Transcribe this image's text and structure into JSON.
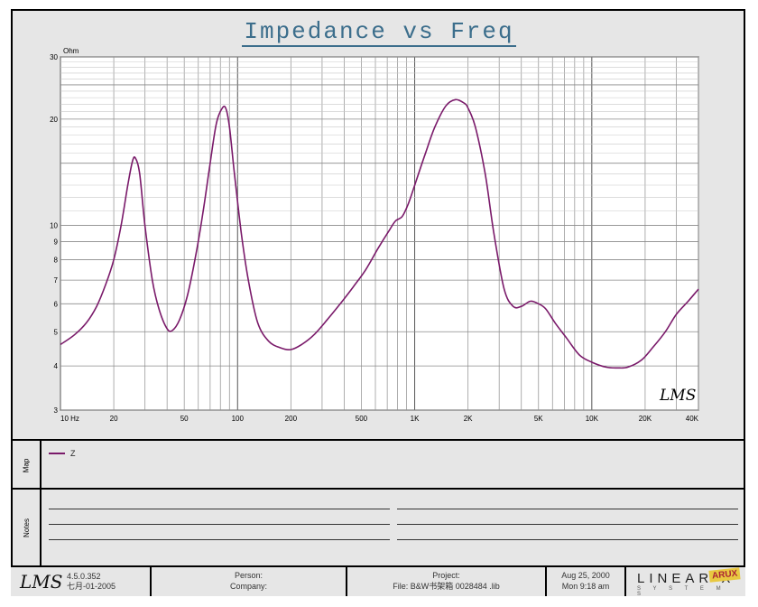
{
  "chart_data": {
    "type": "line",
    "title": "Impedance vs Freq",
    "ylabel": "Ohm",
    "xscale": "log",
    "yscale": "log",
    "xlim": [
      10,
      40000
    ],
    "ylim": [
      3,
      30
    ],
    "grid": true,
    "x_ticks": [
      {
        "v": 10,
        "label": "10 Hz"
      },
      {
        "v": 20,
        "label": "20"
      },
      {
        "v": 50,
        "label": "50"
      },
      {
        "v": 100,
        "label": "100"
      },
      {
        "v": 200,
        "label": "200"
      },
      {
        "v": 500,
        "label": "500"
      },
      {
        "v": 1000,
        "label": "1K"
      },
      {
        "v": 2000,
        "label": "2K"
      },
      {
        "v": 5000,
        "label": "5K"
      },
      {
        "v": 10000,
        "label": "10K"
      },
      {
        "v": 20000,
        "label": "20K"
      },
      {
        "v": 40000,
        "label": "40K"
      }
    ],
    "y_ticks": [
      {
        "v": 3,
        "label": "3"
      },
      {
        "v": 4,
        "label": "4"
      },
      {
        "v": 5,
        "label": "5"
      },
      {
        "v": 6,
        "label": "6"
      },
      {
        "v": 7,
        "label": "7"
      },
      {
        "v": 8,
        "label": "8"
      },
      {
        "v": 9,
        "label": "9"
      },
      {
        "v": 10,
        "label": "10"
      },
      {
        "v": 20,
        "label": "20"
      },
      {
        "v": 30,
        "label": "30"
      }
    ],
    "series": [
      {
        "name": "Z",
        "color": "#7a1a6a",
        "x": [
          10,
          12,
          14,
          16,
          18,
          20,
          22,
          24,
          25.5,
          26.5,
          28,
          30,
          33,
          36,
          40,
          43,
          47,
          52,
          58,
          64,
          70,
          76,
          82,
          86,
          90,
          96,
          105,
          115,
          130,
          150,
          175,
          200,
          230,
          270,
          320,
          380,
          450,
          530,
          620,
          720,
          780,
          850,
          920,
          1000,
          1150,
          1300,
          1500,
          1700,
          1900,
          2000,
          2200,
          2500,
          2800,
          3200,
          3600,
          4000,
          4500,
          5000,
          5500,
          6200,
          7200,
          8500,
          10000,
          12000,
          14000,
          16000,
          19000,
          22000,
          26000,
          30000,
          35000,
          40000
        ],
        "y": [
          4.6,
          4.9,
          5.3,
          5.9,
          6.8,
          8.0,
          10.0,
          13.0,
          15.2,
          15.5,
          14.0,
          10.0,
          7.0,
          5.8,
          5.1,
          5.05,
          5.4,
          6.3,
          8.2,
          11.0,
          15.0,
          19.5,
          21.5,
          21.4,
          19.0,
          14.0,
          9.5,
          7.0,
          5.3,
          4.7,
          4.5,
          4.45,
          4.6,
          4.9,
          5.4,
          6.0,
          6.7,
          7.5,
          8.6,
          9.7,
          10.3,
          10.6,
          11.5,
          13.0,
          16.0,
          19.0,
          21.8,
          22.7,
          22.2,
          21.5,
          19.0,
          14.0,
          9.5,
          6.6,
          5.9,
          5.9,
          6.1,
          6.0,
          5.8,
          5.3,
          4.8,
          4.3,
          4.1,
          3.97,
          3.95,
          3.97,
          4.15,
          4.5,
          5.0,
          5.6,
          6.1,
          6.6
        ]
      }
    ]
  },
  "chart_logo": "LMS",
  "sections": {
    "map_label": "Map",
    "legend_item": "Z",
    "notes_label": "Notes"
  },
  "footer": {
    "logo": "LMS",
    "version": "4.5.0.352",
    "date_code": "七月-01-2005",
    "person_label": "Person:",
    "company_label": "Company:",
    "project_label": "Project:",
    "file_label": "File: B&W书架箱 0028484 .lib",
    "date": "Aug 25, 2000",
    "time": "Mon 9:18 am",
    "brand": "LINEAR X",
    "brand_sub": "S Y S T E M S",
    "stamp": "ARUX"
  }
}
